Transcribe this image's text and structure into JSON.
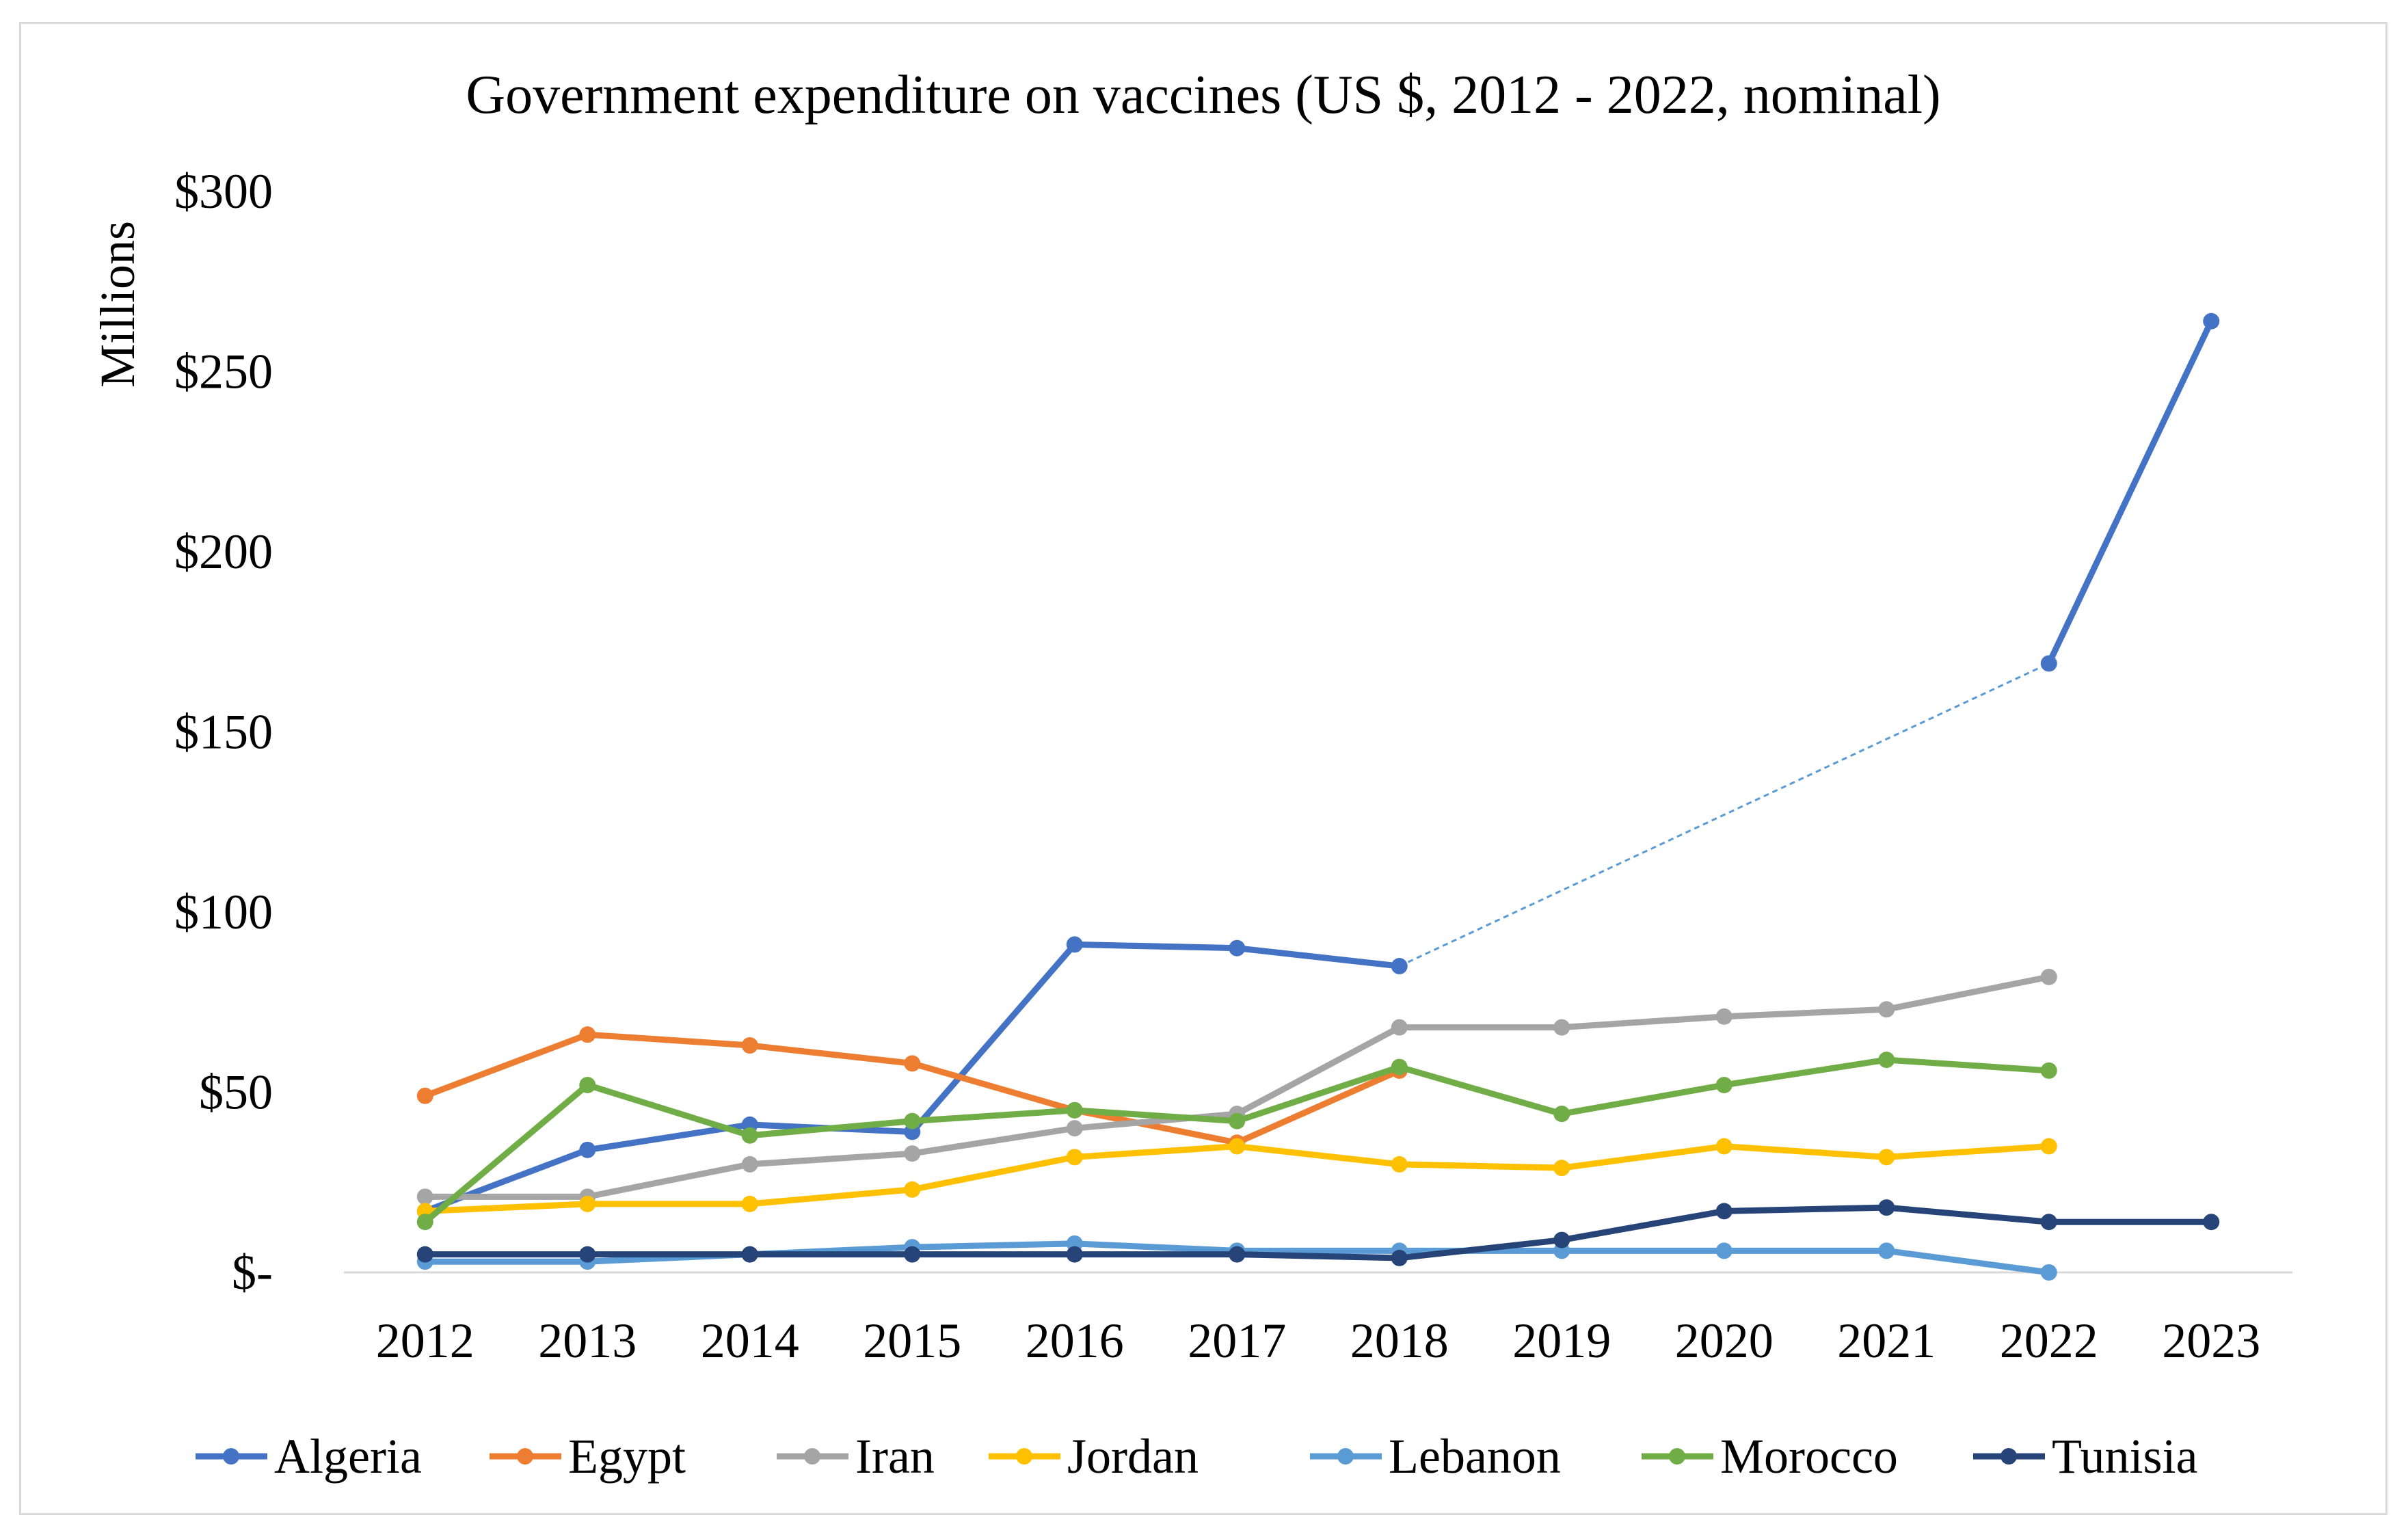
{
  "chart_data": {
    "type": "line",
    "title": "Government expenditure on vaccines (US $, 2012 - 2022, nominal)",
    "ylabel": "Millions",
    "xlabel": "",
    "categories": [
      "2012",
      "2013",
      "2014",
      "2015",
      "2016",
      "2017",
      "2018",
      "2019",
      "2020",
      "2021",
      "2022",
      "2023"
    ],
    "ylim": [
      0,
      300
    ],
    "yticks": [
      0,
      50,
      100,
      150,
      200,
      250,
      300
    ],
    "ytick_labels": [
      "$-",
      "$50",
      "$100",
      "$150",
      "$200",
      "$250",
      "$300"
    ],
    "grid": false,
    "legend": "bottom",
    "series": [
      {
        "name": "Algeria",
        "color": "#4472c4",
        "values": [
          17,
          34,
          41,
          39,
          91,
          90,
          85,
          null,
          null,
          null,
          169,
          264
        ]
      },
      {
        "name": "Egypt",
        "color": "#ed7d31",
        "values": [
          49,
          66,
          63,
          58,
          45,
          36,
          56,
          null,
          null,
          null,
          null,
          null
        ]
      },
      {
        "name": "Iran",
        "color": "#a5a5a5",
        "values": [
          21,
          21,
          30,
          33,
          40,
          44,
          68,
          68,
          71,
          73,
          82,
          null
        ]
      },
      {
        "name": "Jordan",
        "color": "#ffc000",
        "values": [
          17,
          19,
          19,
          23,
          32,
          35,
          30,
          29,
          35,
          32,
          35,
          null
        ]
      },
      {
        "name": "Lebanon",
        "color": "#5b9bd5",
        "values": [
          3,
          3,
          5,
          7,
          8,
          6,
          6,
          6,
          6,
          6,
          0,
          null
        ]
      },
      {
        "name": "Morocco",
        "color": "#70ad47",
        "values": [
          14,
          52,
          38,
          42,
          45,
          42,
          57,
          44,
          52,
          59,
          56,
          null
        ]
      },
      {
        "name": "Tunisia",
        "color": "#264478",
        "values": [
          5,
          5,
          5,
          5,
          5,
          5,
          4,
          9,
          17,
          18,
          14,
          14
        ]
      }
    ],
    "annotations": [
      {
        "type": "dotted-connector",
        "series": "Algeria",
        "from": "2018",
        "to": "2022",
        "color": "#5b9bd5"
      }
    ]
  }
}
